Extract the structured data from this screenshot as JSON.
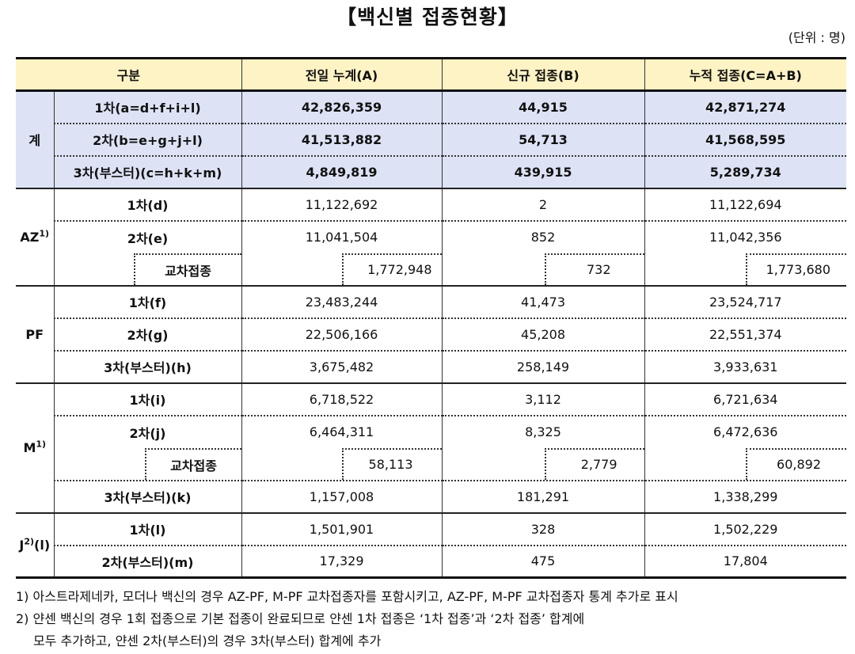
{
  "title": "【백신별 접종현황】",
  "unit": "(단위 : 명)",
  "columns": [
    "구분",
    "전일 누계(A)",
    "신규 접종(B)",
    "누적 접종(C=A+B)"
  ],
  "total": {
    "label": "계",
    "rows": [
      {
        "sub": "1차(a=d+f+i+l)",
        "a": "42,826,359",
        "b": "44,915",
        "c": "42,871,274"
      },
      {
        "sub": "2차(b=e+g+j+l)",
        "a": "41,513,882",
        "b": "54,713",
        "c": "41,568,595"
      },
      {
        "sub": "3차(부스터)(c=h+k+m)",
        "a": "4,849,819",
        "b": "439,915",
        "c": "5,289,734"
      }
    ]
  },
  "az": {
    "label": "AZ",
    "sup": "1)",
    "rows": [
      {
        "sub": "1차(d)",
        "a": "11,122,692",
        "b": "2",
        "c": "11,122,694"
      },
      {
        "sub": "2차(e)",
        "a": "11,041,504",
        "b": "852",
        "c": "11,042,356"
      }
    ],
    "cross": {
      "sub": "교차접종",
      "a": "1,772,948",
      "b": "732",
      "c": "1,773,680"
    }
  },
  "pf": {
    "label": "PF",
    "rows": [
      {
        "sub": "1차(f)",
        "a": "23,483,244",
        "b": "41,473",
        "c": "23,524,717"
      },
      {
        "sub": "2차(g)",
        "a": "22,506,166",
        "b": "45,208",
        "c": "22,551,374"
      },
      {
        "sub": "3차(부스터)(h)",
        "a": "3,675,482",
        "b": "258,149",
        "c": "3,933,631"
      }
    ]
  },
  "m": {
    "label": "M",
    "sup": "1)",
    "rows": [
      {
        "sub": "1차(i)",
        "a": "6,718,522",
        "b": "3,112",
        "c": "6,721,634"
      },
      {
        "sub": "2차(j)",
        "a": "6,464,311",
        "b": "8,325",
        "c": "6,472,636"
      }
    ],
    "cross": {
      "sub": "교차접종",
      "a": "58,113",
      "b": "2,779",
      "c": "60,892"
    },
    "booster": {
      "sub": "3차(부스터)(k)",
      "a": "1,157,008",
      "b": "181,291",
      "c": "1,338,299"
    }
  },
  "j": {
    "label": "J",
    "sup": "2)",
    "suffix": "(l)",
    "rows": [
      {
        "sub": "1차(l)",
        "a": "1,501,901",
        "b": "328",
        "c": "1,502,229"
      },
      {
        "sub": "2차(부스터)(m)",
        "a": "17,329",
        "b": "475",
        "c": "17,804"
      }
    ]
  },
  "notes": [
    "1) 아스트라제네카, 모더나 백신의 경우 AZ-PF, M-PF 교차접종자를 포함시키고, AZ-PF, M-PF 교차접종자 통계 추가로 표시",
    "2) 얀센 백신의 경우 1회 접종으로 기본 접종이 완료되므로 얀센 1차 접종은 ‘1차 접종’과 ‘2차 접종’ 합계에",
    "모두 추가하고, 얀센 2차(부스터)의 경우 3차(부스터) 합계에 추가"
  ]
}
